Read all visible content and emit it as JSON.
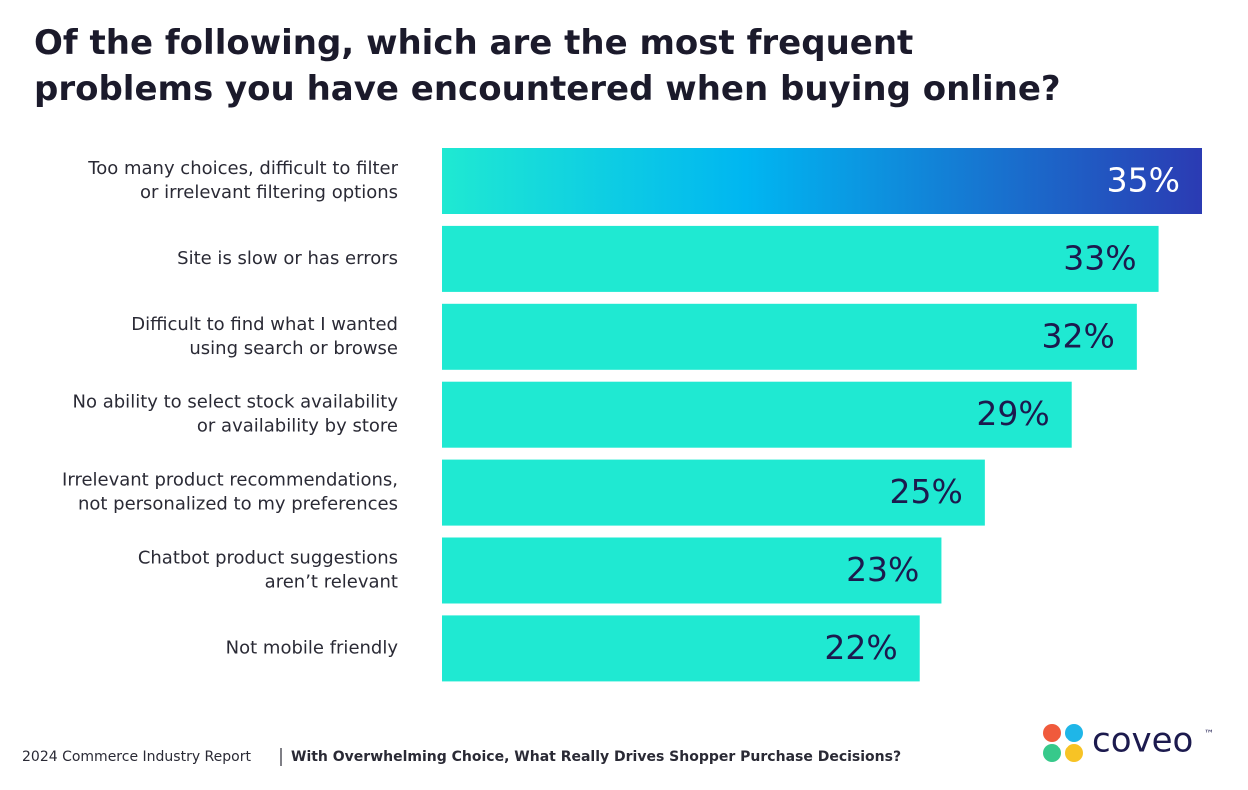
{
  "chart_data": {
    "type": "bar",
    "title": "Of the following, which are the most frequent\nproblems you have encountered when buying online?",
    "categories": [
      "Too many choices, difficult to filter\nor irrelevant filtering options",
      "Site is slow or has errors",
      "Difficult to find what I wanted\nusing search or browse",
      "No ability to select stock availability\nor availability by store",
      "Irrelevant product recommendations,\nnot personalized to my preferences",
      "Chatbot product suggestions\naren’t relevant",
      "Not mobile friendly"
    ],
    "values": [
      35,
      33,
      32,
      29,
      25,
      23,
      22
    ],
    "value_labels": [
      "35%",
      "33%",
      "32%",
      "29%",
      "25%",
      "23%",
      "22%"
    ],
    "color": "#1fe9d2",
    "highlight_gradient": [
      "#1fe9d2",
      "#00b6f1",
      "#2b3bb3"
    ],
    "footer": {
      "report": "2024 Commerce Industry Report",
      "subtitle": "With Overwhelming Choice, What Really Drives Shopper Purchase Decisions?"
    },
    "logo": {
      "text": "coveo",
      "mark": "™"
    }
  }
}
